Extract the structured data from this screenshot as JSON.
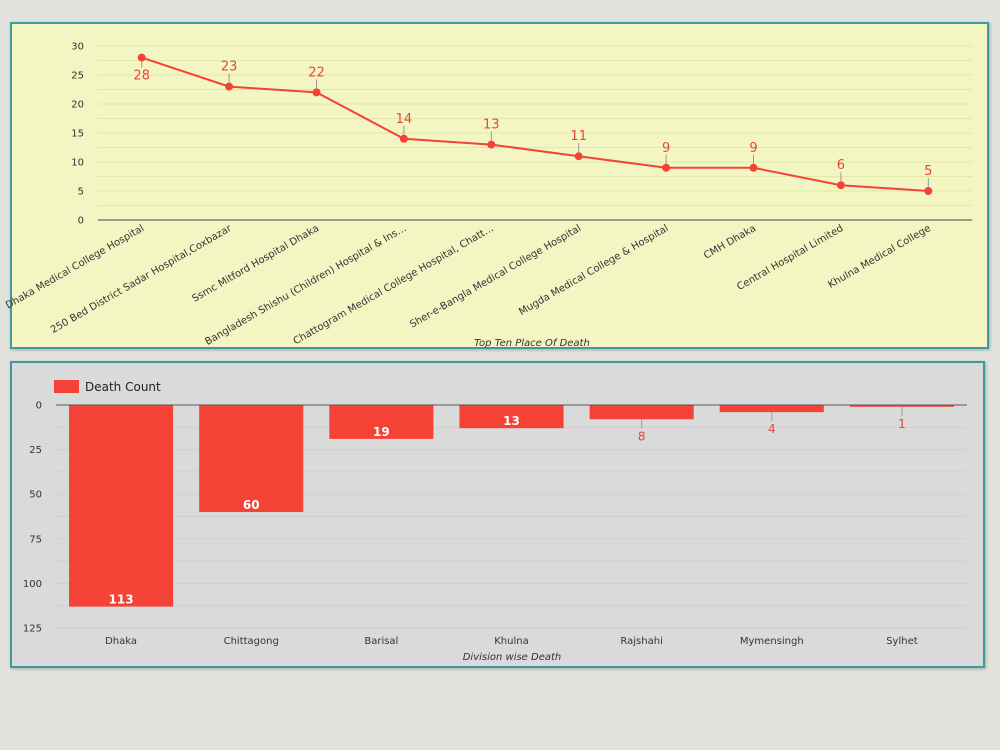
{
  "colors": {
    "series": "#f44336",
    "label": "#e8463a",
    "top_bg": "#f3f6c2",
    "bottom_bg": "#dadada",
    "border": "#3f9aa0"
  },
  "chart_data": [
    {
      "type": "line",
      "title": "Top Ten Place Of Death",
      "categories": [
        "Dhaka Medical College Hospital",
        "250 Bed District Sadar Hospital,Coxbazar",
        "Ssmc Mitford Hospital Dhaka",
        "Bangladesh Shishu (Children) Hospital & Ins…",
        "Chattogram Medical College Hospital, Chatt…",
        "Sher-e-Bangla Medical College Hospital",
        "Mugda Medical College & Hospital",
        "CMH Dhaka",
        "Central Hospital Limited",
        "Khulna Medical College"
      ],
      "values": [
        28,
        23,
        22,
        14,
        13,
        11,
        9,
        9,
        6,
        5
      ],
      "ylim": [
        0,
        30
      ],
      "yticks": [
        "0",
        "5",
        "10",
        "15",
        "20",
        "25",
        "30"
      ],
      "grid": true
    },
    {
      "type": "bar",
      "title": "Division wise Death",
      "categories": [
        "Dhaka",
        "Chittagong",
        "Barisal",
        "Khulna",
        "Rajshahi",
        "Mymensingh",
        "Sylhet"
      ],
      "series": [
        {
          "name": "Death Count",
          "values": [
            113,
            60,
            19,
            13,
            8,
            4,
            1
          ]
        }
      ],
      "ylim": [
        0,
        125
      ],
      "yticks": [
        "0",
        "25",
        "50",
        "75",
        "100",
        "125"
      ],
      "y_inverted": true,
      "legend_position": "top-left",
      "grid": true
    }
  ]
}
